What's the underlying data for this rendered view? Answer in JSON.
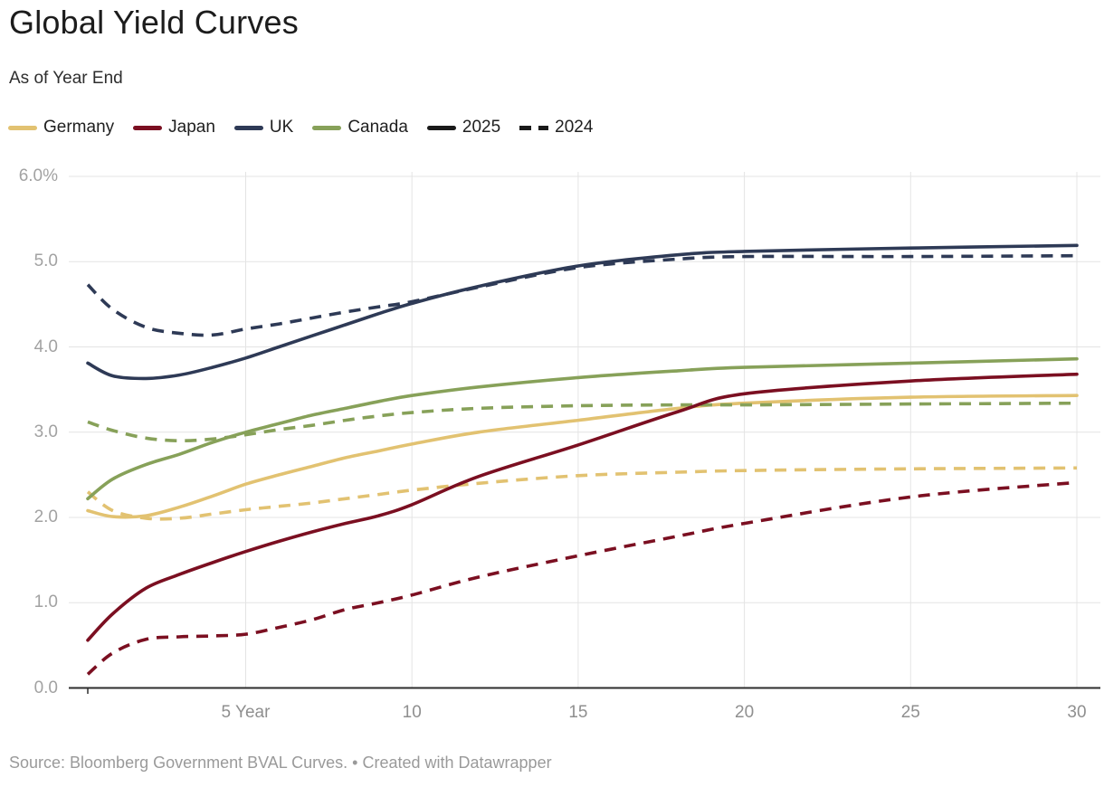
{
  "header": {
    "title": "Global Yield Curves",
    "subtitle": "As of Year End"
  },
  "legend": {
    "countries": [
      {
        "label": "Germany",
        "color": "#e2c271"
      },
      {
        "label": "Japan",
        "color": "#7b0f21"
      },
      {
        "label": "UK",
        "color": "#2e3a56"
      },
      {
        "label": "Canada",
        "color": "#87a159"
      }
    ],
    "years": [
      {
        "label": "2025",
        "style": "solid",
        "color": "#1a1a1a"
      },
      {
        "label": "2024",
        "style": "dashed",
        "color": "#1a1a1a"
      }
    ]
  },
  "footer": {
    "text": "Source: Bloomberg Government BVAL Curves. • Created with Datawrapper"
  },
  "chart_data": {
    "type": "line",
    "title": "Global Yield Curves",
    "subtitle": "As of Year End",
    "x_axis_unit": "Year",
    "xlim": [
      0.25,
      30
    ],
    "ylim": [
      0,
      6
    ],
    "grid": true,
    "legend_position": "top",
    "x_ticks": [
      {
        "value": 5,
        "label": "5 Year"
      },
      {
        "value": 10,
        "label": "10"
      },
      {
        "value": 15,
        "label": "15"
      },
      {
        "value": 20,
        "label": "20"
      },
      {
        "value": 25,
        "label": "25"
      },
      {
        "value": 30,
        "label": "30"
      }
    ],
    "y_ticks": [
      {
        "value": 0,
        "label": "0.0"
      },
      {
        "value": 1,
        "label": "1.0"
      },
      {
        "value": 2,
        "label": "2.0"
      },
      {
        "value": 3,
        "label": "3.0"
      },
      {
        "value": 4,
        "label": "4.0"
      },
      {
        "value": 5,
        "label": "5.0"
      },
      {
        "value": 6,
        "label": "6.0%"
      }
    ],
    "tenors": [
      0.25,
      1,
      2,
      3,
      4,
      5,
      6,
      7,
      8,
      9,
      10,
      12,
      15,
      18,
      20,
      25,
      30
    ],
    "y_unit": "percent",
    "series": [
      {
        "id": "germany-2024",
        "country": "Germany",
        "year": "2024",
        "style": "dashed",
        "color": "#e2c271",
        "values": [
          2.3,
          2.08,
          1.99,
          1.99,
          2.04,
          2.09,
          2.13,
          2.17,
          2.22,
          2.27,
          2.32,
          2.4,
          2.49,
          2.53,
          2.55,
          2.57,
          2.58
        ]
      },
      {
        "id": "germany-2025",
        "country": "Germany",
        "year": "2025",
        "style": "solid",
        "color": "#e2c271",
        "values": [
          2.08,
          2.01,
          2.02,
          2.12,
          2.25,
          2.39,
          2.5,
          2.6,
          2.7,
          2.78,
          2.86,
          3.0,
          3.14,
          3.28,
          3.34,
          3.41,
          3.43
        ]
      },
      {
        "id": "canada-2024",
        "country": "Canada",
        "year": "2024",
        "style": "dashed",
        "color": "#87a159",
        "values": [
          3.12,
          3.02,
          2.93,
          2.9,
          2.92,
          2.97,
          3.03,
          3.08,
          3.14,
          3.19,
          3.23,
          3.28,
          3.31,
          3.32,
          3.32,
          3.33,
          3.34
        ]
      },
      {
        "id": "canada-2025",
        "country": "Canada",
        "year": "2025",
        "style": "solid",
        "color": "#87a159",
        "values": [
          2.22,
          2.45,
          2.62,
          2.74,
          2.88,
          3.0,
          3.1,
          3.2,
          3.28,
          3.36,
          3.43,
          3.53,
          3.64,
          3.72,
          3.76,
          3.81,
          3.86
        ]
      },
      {
        "id": "japan-2024",
        "country": "Japan",
        "year": "2024",
        "style": "dashed",
        "color": "#7b0f21",
        "values": [
          0.16,
          0.41,
          0.57,
          0.6,
          0.61,
          0.63,
          0.71,
          0.8,
          0.92,
          1.0,
          1.09,
          1.3,
          1.55,
          1.78,
          1.93,
          2.24,
          2.41
        ]
      },
      {
        "id": "japan-2025",
        "country": "Japan",
        "year": "2025",
        "style": "solid",
        "color": "#7b0f21",
        "values": [
          0.56,
          0.87,
          1.17,
          1.33,
          1.47,
          1.6,
          1.72,
          1.83,
          1.93,
          2.02,
          2.15,
          2.48,
          2.85,
          3.24,
          3.45,
          3.6,
          3.68
        ]
      },
      {
        "id": "uk-2025",
        "country": "UK",
        "year": "2025",
        "style": "solid",
        "color": "#2e3a56",
        "values": [
          3.81,
          3.66,
          3.63,
          3.67,
          3.76,
          3.87,
          4.0,
          4.13,
          4.26,
          4.39,
          4.51,
          4.71,
          4.95,
          5.08,
          5.12,
          5.16,
          5.19
        ]
      },
      {
        "id": "uk-2024",
        "country": "UK",
        "year": "2024",
        "style": "dashed",
        "color": "#2e3a56",
        "values": [
          4.73,
          4.44,
          4.23,
          4.16,
          4.14,
          4.21,
          4.27,
          4.34,
          4.41,
          4.47,
          4.53,
          4.7,
          4.93,
          5.03,
          5.06,
          5.06,
          5.07
        ]
      }
    ]
  }
}
